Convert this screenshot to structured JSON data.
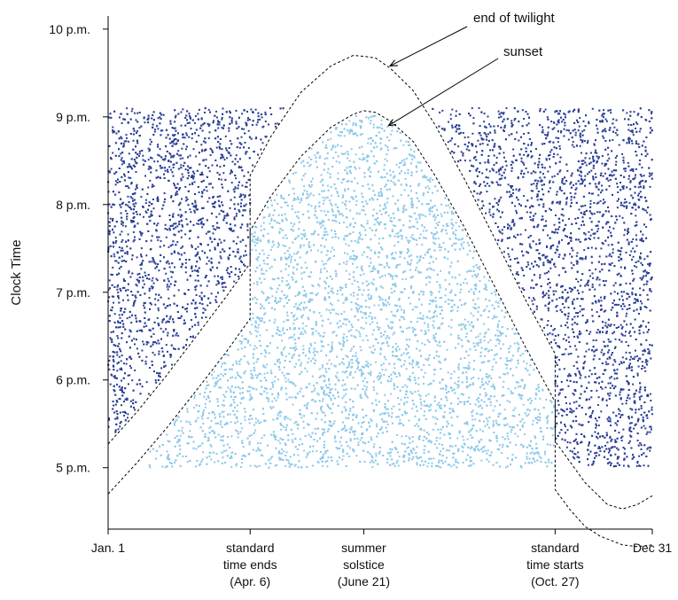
{
  "chart_data": {
    "type": "scatter",
    "title": "",
    "xlabel": "",
    "ylabel": "Clock Time",
    "xlim": [
      1,
      365
    ],
    "ylim": [
      16.3,
      22.15
    ],
    "grid": false,
    "legend": "none",
    "y_ticks": [
      {
        "value": 17,
        "label": "5 p.m."
      },
      {
        "value": 18,
        "label": "6 p.m."
      },
      {
        "value": 19,
        "label": "7 p.m."
      },
      {
        "value": 20,
        "label": "8 p.m."
      },
      {
        "value": 21,
        "label": "9 p.m."
      },
      {
        "value": 22,
        "label": "10 p.m."
      }
    ],
    "x_ticks": [
      {
        "value": 1,
        "lines": [
          "Jan. 1"
        ]
      },
      {
        "value": 96,
        "lines": [
          "standard",
          "time ends",
          "(Apr. 6)"
        ]
      },
      {
        "value": 172,
        "lines": [
          "summer",
          "solstice",
          "(June 21)"
        ]
      },
      {
        "value": 300,
        "lines": [
          "standard",
          "time starts",
          "(Oct. 27)"
        ]
      },
      {
        "value": 365,
        "lines": [
          "Dec 31"
        ]
      }
    ],
    "series": [
      {
        "role": "end-of-twilight-curve",
        "x": [
          1,
          20,
          40,
          60,
          80,
          96,
          96,
          110,
          130,
          150,
          165,
          172,
          180,
          190,
          205,
          220,
          240,
          260,
          280,
          300,
          300,
          320,
          335,
          345,
          355,
          365
        ],
        "y": [
          17.27,
          17.63,
          18.05,
          18.5,
          18.95,
          19.33,
          20.33,
          20.78,
          21.28,
          21.58,
          21.7,
          21.69,
          21.67,
          21.55,
          21.3,
          20.9,
          20.27,
          19.6,
          18.92,
          18.3,
          17.3,
          16.83,
          16.58,
          16.53,
          16.58,
          16.68
        ],
        "color": "#000000",
        "dash": true
      },
      {
        "role": "sunset-curve",
        "x": [
          1,
          20,
          40,
          60,
          80,
          96,
          96,
          110,
          130,
          150,
          165,
          172,
          180,
          190,
          205,
          220,
          240,
          260,
          280,
          300,
          300,
          310,
          320,
          330,
          345,
          355,
          365
        ],
        "y": [
          16.7,
          17.05,
          17.45,
          17.88,
          18.32,
          18.7,
          19.7,
          20.1,
          20.55,
          20.88,
          21.03,
          21.07,
          21.05,
          20.95,
          20.72,
          20.32,
          19.72,
          19.05,
          18.38,
          17.75,
          16.75,
          16.52,
          16.33,
          16.22,
          16.12,
          16.1,
          16.12
        ],
        "color": "#000000",
        "dash": true
      }
    ],
    "point_fields": [
      {
        "role": "dark-points",
        "color": "#2b3f95",
        "x_range": [
          1,
          365
        ],
        "y_range": [
          17.0,
          21.1
        ],
        "region": "above end-of-twilight curve"
      },
      {
        "role": "light-points",
        "color": "#8ec9e8",
        "x_range": [
          1,
          365
        ],
        "y_range": [
          17.0,
          21.1
        ],
        "region": "below sunset curve"
      }
    ],
    "annotations": [
      {
        "text": "end of twilight",
        "target_x": 186,
        "target_y": 21.6
      },
      {
        "text": "sunset",
        "target_x": 185,
        "target_y": 20.92
      }
    ]
  }
}
